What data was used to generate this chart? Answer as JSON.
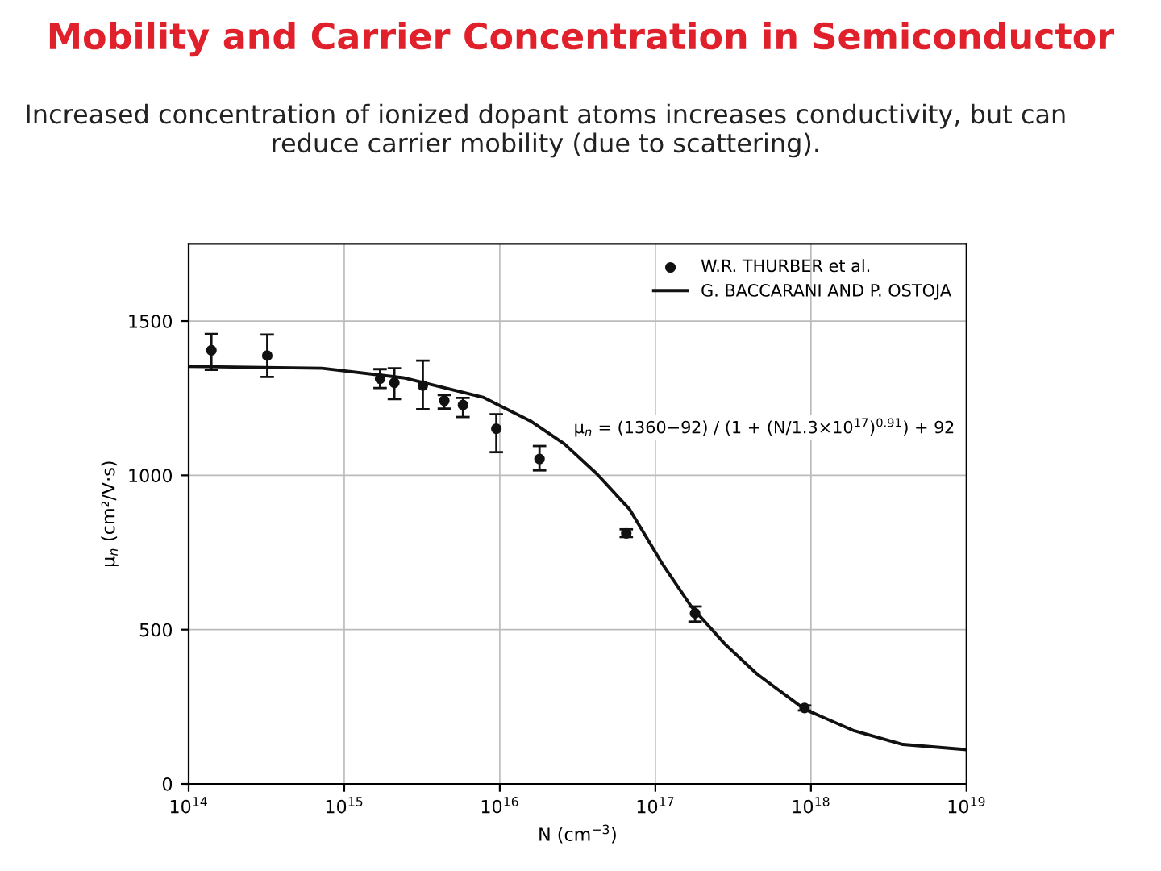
{
  "chart_data": {
    "type": "scatter",
    "title": "Mobility and Carrier Concentration in Semiconductor",
    "subtitle": "Increased concentration of ionized dopant atoms increases conductivity, but can reduce carrier mobility (due to scattering).",
    "xlabel": "N (cm$^{−3}$)",
    "ylabel": "μ$_{n}$ (cm²/V·s)",
    "log": "x",
    "xlim": [
      100000000000000.0,
      1e+19
    ],
    "xticks": [
      {
        "value": 100000000000000.0,
        "label": "10$^{14}$"
      },
      {
        "value": 1000000000000000.0,
        "label": "10$^{15}$"
      },
      {
        "value": 1e+16,
        "label": "10$^{16}$"
      },
      {
        "value": 1e+17,
        "label": "10$^{17}$"
      },
      {
        "value": 1e+18,
        "label": "10$^{18}$"
      },
      {
        "value": 1e+19,
        "label": "10$^{19}$"
      }
    ],
    "ylim": [
      0,
      1750
    ],
    "yticks": [
      0,
      500,
      1000,
      1500
    ],
    "grid": true,
    "legend": "top right",
    "series": [
      {
        "name": "W.R. THURBER et al.",
        "color": "#111111",
        "marker": "circle",
        "x": [
          140000000000000.0,
          320000000000000.0,
          1700000000000000.0,
          2100000000000000.0,
          3200000000000000.0,
          4400000000000000.0,
          5800000000000000.0,
          9500000000000000.0,
          1.8e+16,
          6.5e+16,
          1.8e+17,
          9.1e+17
        ],
        "values": [
          1405,
          1388,
          1313,
          1300,
          1291,
          1242,
          1228,
          1151,
          1053,
          812,
          553,
          246
        ],
        "errors": [
          [
            1342,
            1458
          ],
          [
            1319,
            1456
          ],
          [
            1283,
            1344
          ],
          [
            1247,
            1347
          ],
          [
            1214,
            1372
          ],
          [
            1216,
            1260
          ],
          [
            1189,
            1251
          ],
          [
            1075,
            1198
          ],
          [
            1016,
            1095
          ],
          [
            800,
            825
          ],
          [
            526,
            575
          ],
          [
            238,
            254
          ]
        ]
      },
      {
        "name": "G. BACCARANI AND P. OSTOJA",
        "type": "line",
        "color": "#111111",
        "marker": "none",
        "line_style": "solid",
        "x": [
          100000000000000.0,
          720000000000000.0,
          2400000000000000.0,
          7800000000000000.0,
          1.6e+16,
          2.6e+16,
          4.2e+16,
          6.8e+16,
          1.1e+17,
          1.7e+17,
          2.8e+17,
          4.5e+17,
          9.1e+17,
          1.9e+18,
          3.9e+18,
          1e+19
        ],
        "values": [
          1353,
          1347,
          1316,
          1253,
          1174,
          1102,
          1005,
          891,
          716,
          575,
          453,
          356,
          242,
          172,
          128,
          111
        ]
      }
    ],
    "annotations": [
      "μ$_{n}$ = (1360−92) / (1 + (N/1.3×10$^{17}$)$^{0.91}$) + 92"
    ]
  }
}
